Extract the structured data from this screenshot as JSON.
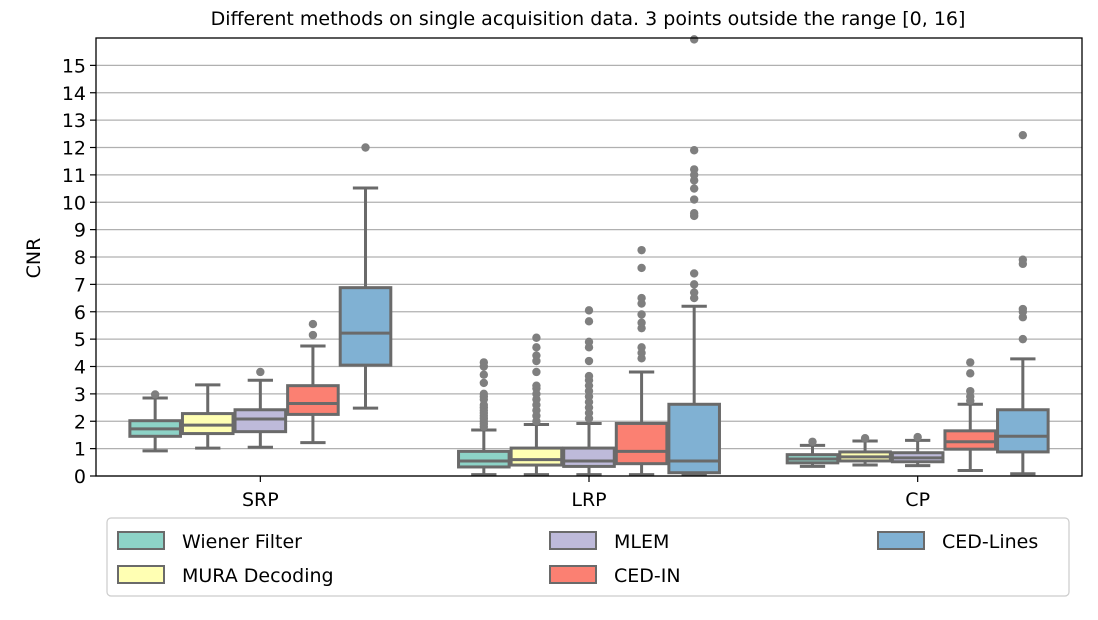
{
  "chart_data": {
    "type": "box",
    "title": "Different methods on single acquisition data. 3 points outside the range [0, 16]",
    "xlabel": "",
    "ylabel": "CNR",
    "ylim": [
      0,
      16
    ],
    "yticks": [
      0,
      1,
      2,
      3,
      4,
      5,
      6,
      7,
      8,
      9,
      10,
      11,
      12,
      13,
      14,
      15
    ],
    "grid": "horizontal",
    "categories": [
      "SRP",
      "LRP",
      "CP"
    ],
    "series": [
      {
        "name": "Wiener Filter",
        "color": "#8dd3c7",
        "boxes": [
          {
            "whislo": 0.92,
            "q1": 1.45,
            "med": 1.72,
            "q3": 2.02,
            "whishi": 2.85,
            "fliers": [
              2.98
            ]
          },
          {
            "whislo": 0.05,
            "q1": 0.33,
            "med": 0.55,
            "q3": 0.9,
            "whishi": 1.68,
            "fliers": [
              1.8,
              1.9,
              2.0,
              2.1,
              2.2,
              2.3,
              2.4,
              2.5,
              2.6,
              2.8,
              2.9,
              3.0,
              3.4,
              3.7,
              4.0,
              4.15
            ]
          },
          {
            "whislo": 0.35,
            "q1": 0.48,
            "med": 0.62,
            "q3": 0.78,
            "whishi": 1.12,
            "fliers": [
              1.25
            ]
          }
        ]
      },
      {
        "name": "MURA Decoding",
        "color": "#ffffb3",
        "boxes": [
          {
            "whislo": 1.02,
            "q1": 1.55,
            "med": 1.86,
            "q3": 2.28,
            "whishi": 3.33,
            "fliers": []
          },
          {
            "whislo": 0.05,
            "q1": 0.4,
            "med": 0.6,
            "q3": 1.02,
            "whishi": 1.88,
            "fliers": [
              2.0,
              2.2,
              2.4,
              2.6,
              2.8,
              3.0,
              3.2,
              3.3,
              3.8,
              4.2,
              4.4,
              4.7,
              5.05
            ]
          },
          {
            "whislo": 0.4,
            "q1": 0.55,
            "med": 0.7,
            "q3": 0.88,
            "whishi": 1.28,
            "fliers": [
              1.38
            ]
          }
        ]
      },
      {
        "name": "MLEM",
        "color": "#bebada",
        "boxes": [
          {
            "whislo": 1.05,
            "q1": 1.62,
            "med": 2.08,
            "q3": 2.42,
            "whishi": 3.5,
            "fliers": [
              3.8
            ]
          },
          {
            "whislo": 0.05,
            "q1": 0.35,
            "med": 0.55,
            "q3": 1.02,
            "whishi": 1.92,
            "fliers": [
              2.1,
              2.3,
              2.5,
              2.7,
              2.9,
              3.1,
              3.3,
              3.5,
              3.65,
              4.2,
              4.7,
              4.9,
              5.65,
              6.05
            ]
          },
          {
            "whislo": 0.38,
            "q1": 0.52,
            "med": 0.66,
            "q3": 0.85,
            "whishi": 1.3,
            "fliers": [
              1.42
            ]
          }
        ]
      },
      {
        "name": "CED-IN",
        "color": "#fb8072",
        "boxes": [
          {
            "whislo": 1.22,
            "q1": 2.25,
            "med": 2.65,
            "q3": 3.3,
            "whishi": 4.75,
            "fliers": [
              5.15,
              5.55
            ]
          },
          {
            "whislo": 0.05,
            "q1": 0.45,
            "med": 0.9,
            "q3": 1.92,
            "whishi": 3.8,
            "fliers": [
              4.3,
              4.5,
              4.7,
              5.4,
              5.6,
              5.9,
              6.3,
              6.5,
              7.6,
              8.25
            ]
          },
          {
            "whislo": 0.2,
            "q1": 0.98,
            "med": 1.25,
            "q3": 1.65,
            "whishi": 2.62,
            "fliers": [
              2.75,
              2.9,
              3.1,
              3.75,
              4.15
            ]
          }
        ]
      },
      {
        "name": "CED-Lines",
        "color": "#80b1d3",
        "boxes": [
          {
            "whislo": 2.48,
            "q1": 4.05,
            "med": 5.22,
            "q3": 6.88,
            "whishi": 10.52,
            "fliers": [
              12.0
            ]
          },
          {
            "whislo": 0.05,
            "q1": 0.12,
            "med": 0.55,
            "q3": 2.62,
            "whishi": 6.2,
            "fliers": [
              6.5,
              6.7,
              7.0,
              7.4,
              9.5,
              9.6,
              10.1,
              10.5,
              10.8,
              11.0,
              11.2,
              11.9,
              15.95
            ]
          },
          {
            "whislo": 0.08,
            "q1": 0.88,
            "med": 1.45,
            "q3": 2.42,
            "whishi": 4.28,
            "fliers": [
              5.0,
              5.8,
              6.0,
              6.1,
              7.75,
              7.9,
              12.45
            ]
          }
        ]
      }
    ],
    "legend_position": "bottom"
  }
}
